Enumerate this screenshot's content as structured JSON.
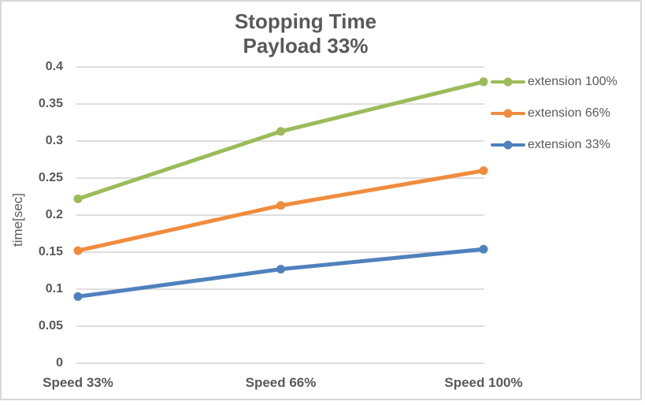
{
  "chart_data": {
    "type": "line",
    "title": "Stopping Time",
    "subtitle": "Payload 33%",
    "xlabel": "",
    "ylabel": "time[sec]",
    "categories": [
      "Speed 33%",
      "Speed 66%",
      "Speed 100%"
    ],
    "series": [
      {
        "name": "extension 100%",
        "color": "#9CBB59",
        "values": [
          0.222,
          0.313,
          0.38
        ]
      },
      {
        "name": "extension 66%",
        "color": "#F08C3D",
        "values": [
          0.152,
          0.213,
          0.26
        ]
      },
      {
        "name": "extension 33%",
        "color": "#4F81BD",
        "values": [
          0.09,
          0.127,
          0.154
        ]
      }
    ],
    "ylim": [
      0,
      0.4
    ],
    "ytick_step": 0.05,
    "yticks": [
      "0",
      "0.05",
      "0.1",
      "0.15",
      "0.2",
      "0.25",
      "0.3",
      "0.35",
      "0.4"
    ],
    "grid": true,
    "legend_position": "right"
  },
  "colors": {
    "text": "#595959",
    "gridline": "#D9D9D9",
    "border": "#D8D8D8",
    "background": "#FFFFFF"
  }
}
